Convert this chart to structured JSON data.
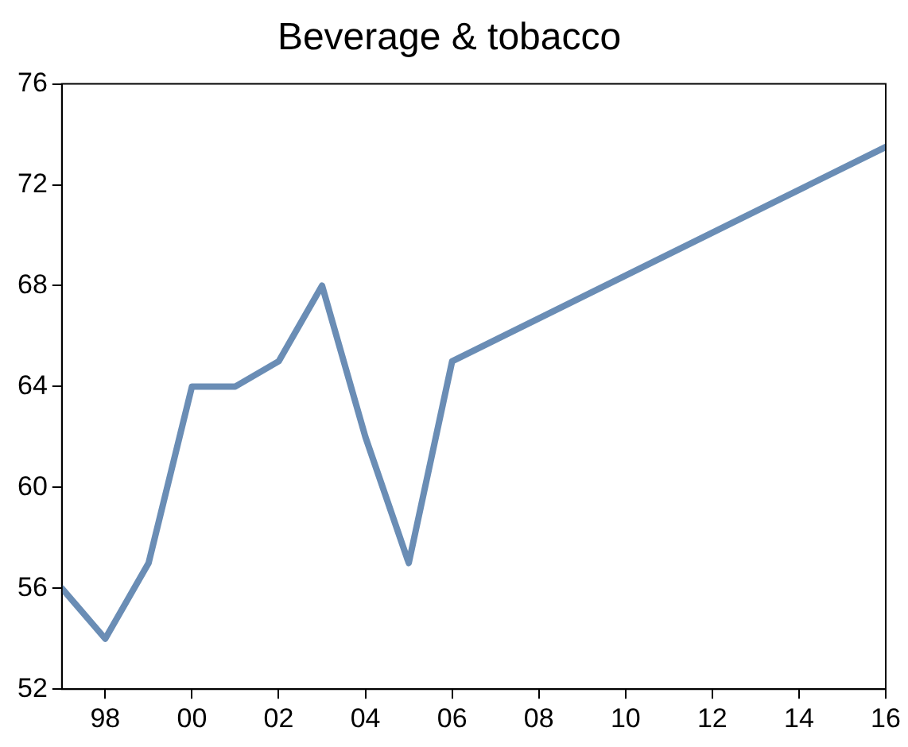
{
  "chart_data": {
    "type": "line",
    "title": "Beverage & tobacco",
    "x": [
      1997,
      1998,
      1999,
      2000,
      2001,
      2002,
      2003,
      2004,
      2005,
      2006,
      2016
    ],
    "values": [
      56,
      54,
      57,
      64,
      64,
      65,
      68,
      62,
      57,
      65,
      73.5
    ],
    "color": "#6a8db5",
    "xlim": [
      1997,
      2016
    ],
    "xticks": [
      {
        "value": 1998,
        "label": "98"
      },
      {
        "value": 2000,
        "label": "00"
      },
      {
        "value": 2002,
        "label": "02"
      },
      {
        "value": 2004,
        "label": "04"
      },
      {
        "value": 2006,
        "label": "06"
      },
      {
        "value": 2008,
        "label": "08"
      },
      {
        "value": 2010,
        "label": "10"
      },
      {
        "value": 2012,
        "label": "12"
      },
      {
        "value": 2014,
        "label": "14"
      },
      {
        "value": 2016,
        "label": "16"
      }
    ],
    "ylim": [
      52,
      76
    ],
    "yticks": [
      52,
      56,
      60,
      64,
      68,
      72,
      76
    ],
    "grid": false,
    "legend": false,
    "marker": "none",
    "line_style": "solid"
  }
}
